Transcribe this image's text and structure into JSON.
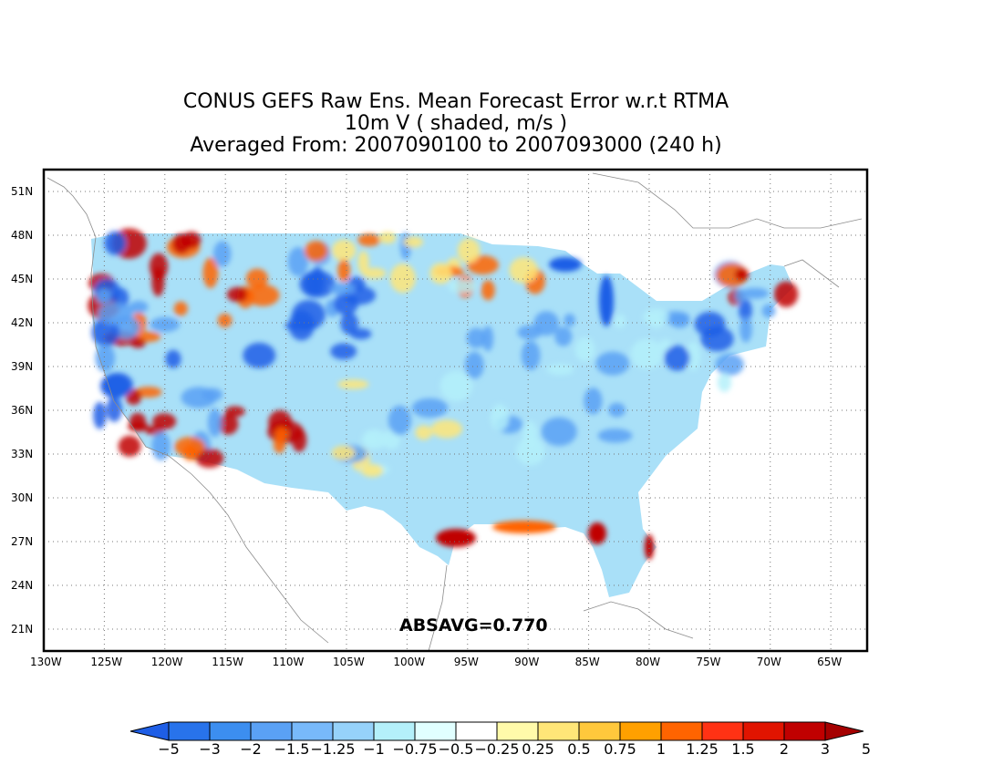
{
  "title": {
    "line1": "CONUS GEFS Raw Ens. Mean Forecast Error w.r.t RTMA",
    "line2": "10m V ( shaded, m/s )",
    "line3": "Averaged From: 2007090100 to 2007093000 (240 h)"
  },
  "map": {
    "lat_labels": [
      "51N",
      "48N",
      "45N",
      "42N",
      "39N",
      "36N",
      "33N",
      "30N",
      "27N",
      "24N",
      "21N"
    ],
    "lon_labels": [
      "130W",
      "125W",
      "120W",
      "115W",
      "110W",
      "105W",
      "100W",
      "95W",
      "90W",
      "85W",
      "80W",
      "75W",
      "70W",
      "65W"
    ],
    "lat_range": [
      19.5,
      52.5
    ],
    "lon_range": [
      -130,
      -62
    ],
    "grid": true
  },
  "annotation": "ABSAVG=0.770",
  "colorbar": {
    "labels": [
      "−5",
      "−3",
      "−2",
      "−1.5",
      "−1.25",
      "−1",
      "−0.75",
      "−0.5",
      "−0.25",
      "0.25",
      "0.5",
      "0.75",
      "1",
      "1.25",
      "1.5",
      "2",
      "3",
      "5"
    ],
    "colors": [
      "#1e5ee6",
      "#2873eb",
      "#3c8ef0",
      "#5aa1f5",
      "#78b9fa",
      "#96d2fa",
      "#b4f0fa",
      "#e1ffff",
      "#ffffff",
      "#fffaaa",
      "#ffe678",
      "#ffc83c",
      "#ffa000",
      "#ff6400",
      "#ff3214",
      "#e11400",
      "#c00000",
      "#a50000"
    ]
  },
  "palette": {
    "neg_strong": "#1e5ee6",
    "neg_mid": "#5aa1f5",
    "neg_light": "#b4f0fa",
    "pos_light": "#ffe678",
    "pos_mid": "#ff6400",
    "pos_strong": "#c00000"
  }
}
